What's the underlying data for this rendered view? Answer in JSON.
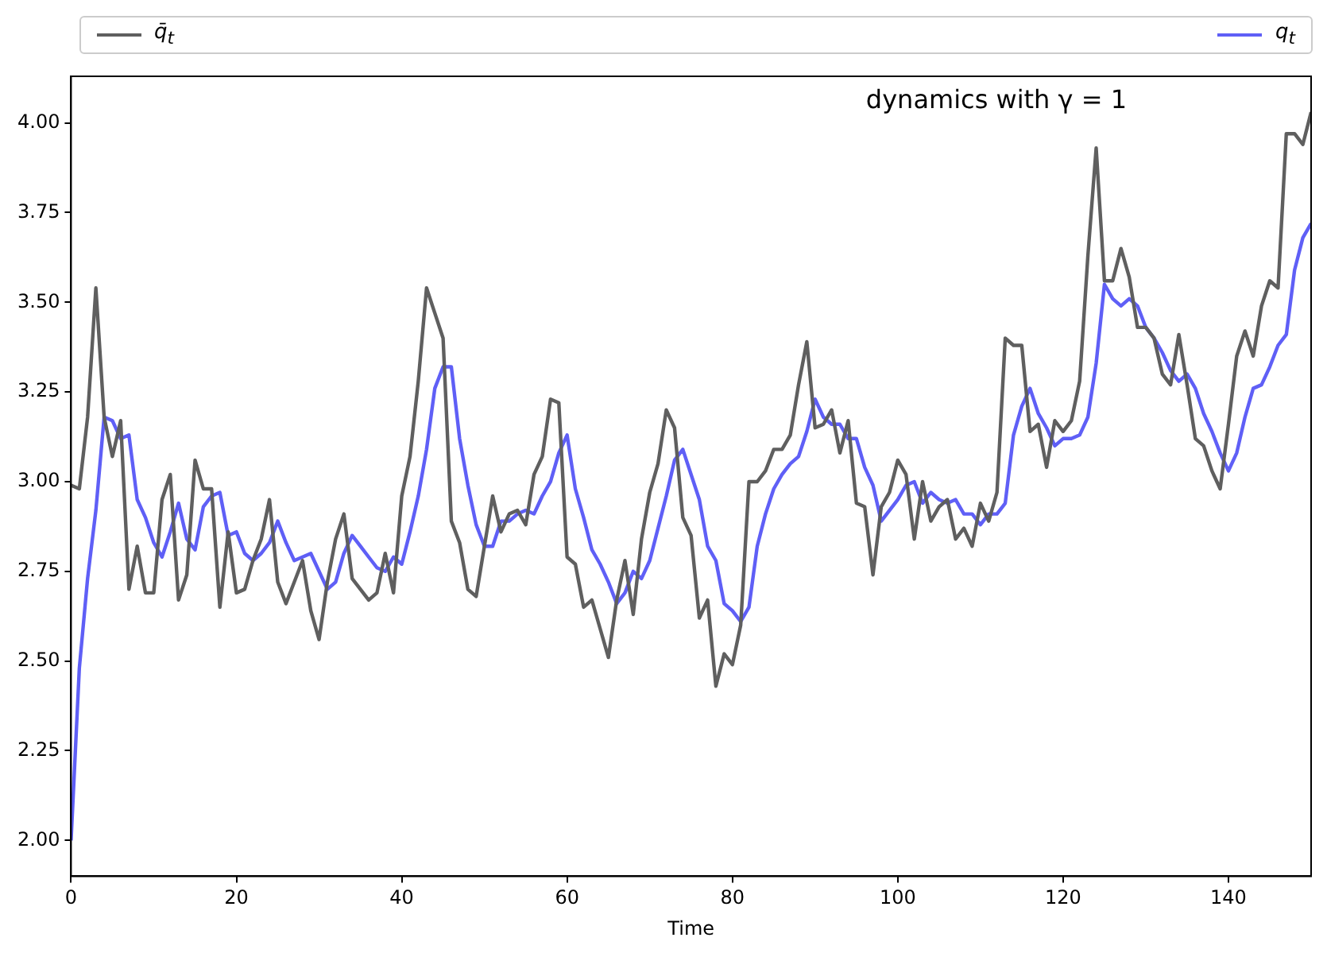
{
  "chart_data": {
    "type": "line",
    "xlabel": "Time",
    "annotations": [
      "dynamics with γ = 1"
    ],
    "legend": "top",
    "xlim": [
      0,
      150
    ],
    "xticks": [
      0,
      20,
      40,
      60,
      80,
      100,
      120,
      140
    ],
    "ylim": [
      1.9,
      4.13
    ],
    "yticks": [
      {
        "value": 2,
        "label": "2.00"
      },
      {
        "value": 2.25,
        "label": "2.25"
      },
      {
        "value": 2.5,
        "label": "2.50"
      },
      {
        "value": 2.75,
        "label": "2.75"
      },
      {
        "value": 3,
        "label": "3.00"
      },
      {
        "value": 3.25,
        "label": "3.25"
      },
      {
        "value": 3.5,
        "label": "3.50"
      },
      {
        "value": 3.75,
        "label": "3.75"
      },
      {
        "value": 4,
        "label": "4.00"
      }
    ],
    "x": [
      0,
      1,
      2,
      3,
      4,
      5,
      6,
      7,
      8,
      9,
      10,
      11,
      12,
      13,
      14,
      15,
      16,
      17,
      18,
      19,
      20,
      21,
      22,
      23,
      24,
      25,
      26,
      27,
      28,
      29,
      30,
      31,
      32,
      33,
      34,
      35,
      36,
      37,
      38,
      39,
      40,
      41,
      42,
      43,
      44,
      45,
      46,
      47,
      48,
      49,
      50,
      51,
      52,
      53,
      54,
      55,
      56,
      57,
      58,
      59,
      60,
      61,
      62,
      63,
      64,
      65,
      66,
      67,
      68,
      69,
      70,
      71,
      72,
      73,
      74,
      75,
      76,
      77,
      78,
      79,
      80,
      81,
      82,
      83,
      84,
      85,
      86,
      87,
      88,
      89,
      90,
      91,
      92,
      93,
      94,
      95,
      96,
      97,
      98,
      99,
      100,
      101,
      102,
      103,
      104,
      105,
      106,
      107,
      108,
      109,
      110,
      111,
      112,
      113,
      114,
      115,
      116,
      117,
      118,
      119,
      120,
      121,
      122,
      123,
      124,
      125,
      126,
      127,
      128,
      129,
      130,
      131,
      132,
      133,
      134,
      135,
      136,
      137,
      138,
      139,
      140,
      141,
      142,
      143,
      144,
      145,
      146,
      147,
      148,
      149,
      150
    ],
    "series": [
      {
        "name": "q̄$_{t}$",
        "color": "#5f5f5f",
        "values": [
          2.99,
          2.98,
          3.18,
          3.54,
          3.18,
          3.07,
          3.17,
          2.7,
          2.82,
          2.69,
          2.69,
          2.95,
          3.02,
          2.67,
          2.74,
          3.06,
          2.98,
          2.98,
          2.65,
          2.86,
          2.69,
          2.7,
          2.78,
          2.84,
          2.95,
          2.72,
          2.66,
          2.72,
          2.78,
          2.64,
          2.56,
          2.72,
          2.84,
          2.91,
          2.73,
          2.7,
          2.67,
          2.69,
          2.8,
          2.69,
          2.96,
          3.07,
          3.28,
          3.54,
          3.47,
          3.4,
          2.89,
          2.83,
          2.7,
          2.68,
          2.82,
          2.96,
          2.86,
          2.91,
          2.92,
          2.88,
          3.02,
          3.07,
          3.23,
          3.22,
          2.79,
          2.77,
          2.65,
          2.67,
          2.59,
          2.51,
          2.67,
          2.78,
          2.63,
          2.84,
          2.97,
          3.05,
          3.2,
          3.15,
          2.9,
          2.85,
          2.62,
          2.67,
          2.43,
          2.52,
          2.49,
          2.6,
          3.0,
          3.0,
          3.03,
          3.09,
          3.09,
          3.13,
          3.27,
          3.39,
          3.15,
          3.16,
          3.2,
          3.08,
          3.17,
          2.94,
          2.93,
          2.74,
          2.93,
          2.97,
          3.06,
          3.02,
          2.84,
          3.0,
          2.89,
          2.93,
          2.95,
          2.84,
          2.87,
          2.82,
          2.94,
          2.89,
          2.97,
          3.4,
          3.38,
          3.38,
          3.14,
          3.16,
          3.04,
          3.17,
          3.14,
          3.17,
          3.28,
          3.63,
          3.93,
          3.56,
          3.56,
          3.65,
          3.57,
          3.43,
          3.43,
          3.4,
          3.3,
          3.27,
          3.41,
          3.27,
          3.12,
          3.1,
          3.03,
          2.98,
          3.16,
          3.35,
          3.42,
          3.35,
          3.49,
          3.56,
          3.54,
          3.97,
          3.97,
          3.94,
          4.03
        ]
      },
      {
        "name": "q$_{t}$",
        "color": "#5f5ff6",
        "values": [
          2.0,
          2.48,
          2.73,
          2.92,
          3.18,
          3.17,
          3.12,
          3.13,
          2.95,
          2.9,
          2.83,
          2.79,
          2.86,
          2.94,
          2.84,
          2.81,
          2.93,
          2.96,
          2.97,
          2.85,
          2.86,
          2.8,
          2.78,
          2.8,
          2.83,
          2.89,
          2.83,
          2.78,
          2.79,
          2.8,
          2.75,
          2.7,
          2.72,
          2.8,
          2.85,
          2.82,
          2.79,
          2.76,
          2.75,
          2.79,
          2.77,
          2.86,
          2.96,
          3.09,
          3.26,
          3.32,
          3.32,
          3.12,
          2.99,
          2.88,
          2.82,
          2.82,
          2.89,
          2.89,
          2.91,
          2.92,
          2.91,
          2.96,
          3.0,
          3.08,
          3.13,
          2.98,
          2.9,
          2.81,
          2.77,
          2.72,
          2.66,
          2.69,
          2.75,
          2.73,
          2.78,
          2.87,
          2.96,
          3.06,
          3.09,
          3.02,
          2.95,
          2.82,
          2.78,
          2.66,
          2.64,
          2.61,
          2.65,
          2.82,
          2.91,
          2.98,
          3.02,
          3.05,
          3.07,
          3.14,
          3.23,
          3.18,
          3.16,
          3.16,
          3.12,
          3.12,
          3.04,
          2.99,
          2.89,
          2.92,
          2.95,
          2.99,
          3.0,
          2.94,
          2.97,
          2.95,
          2.94,
          2.95,
          2.91,
          2.91,
          2.88,
          2.91,
          2.91,
          2.94,
          3.13,
          3.21,
          3.26,
          3.19,
          3.15,
          3.1,
          3.12,
          3.12,
          3.13,
          3.18,
          3.33,
          3.55,
          3.51,
          3.49,
          3.51,
          3.49,
          3.43,
          3.4,
          3.36,
          3.31,
          3.28,
          3.3,
          3.26,
          3.19,
          3.14,
          3.08,
          3.03,
          3.08,
          3.18,
          3.26,
          3.27,
          3.32,
          3.38,
          3.41,
          3.59,
          3.68,
          3.72
        ]
      }
    ]
  }
}
